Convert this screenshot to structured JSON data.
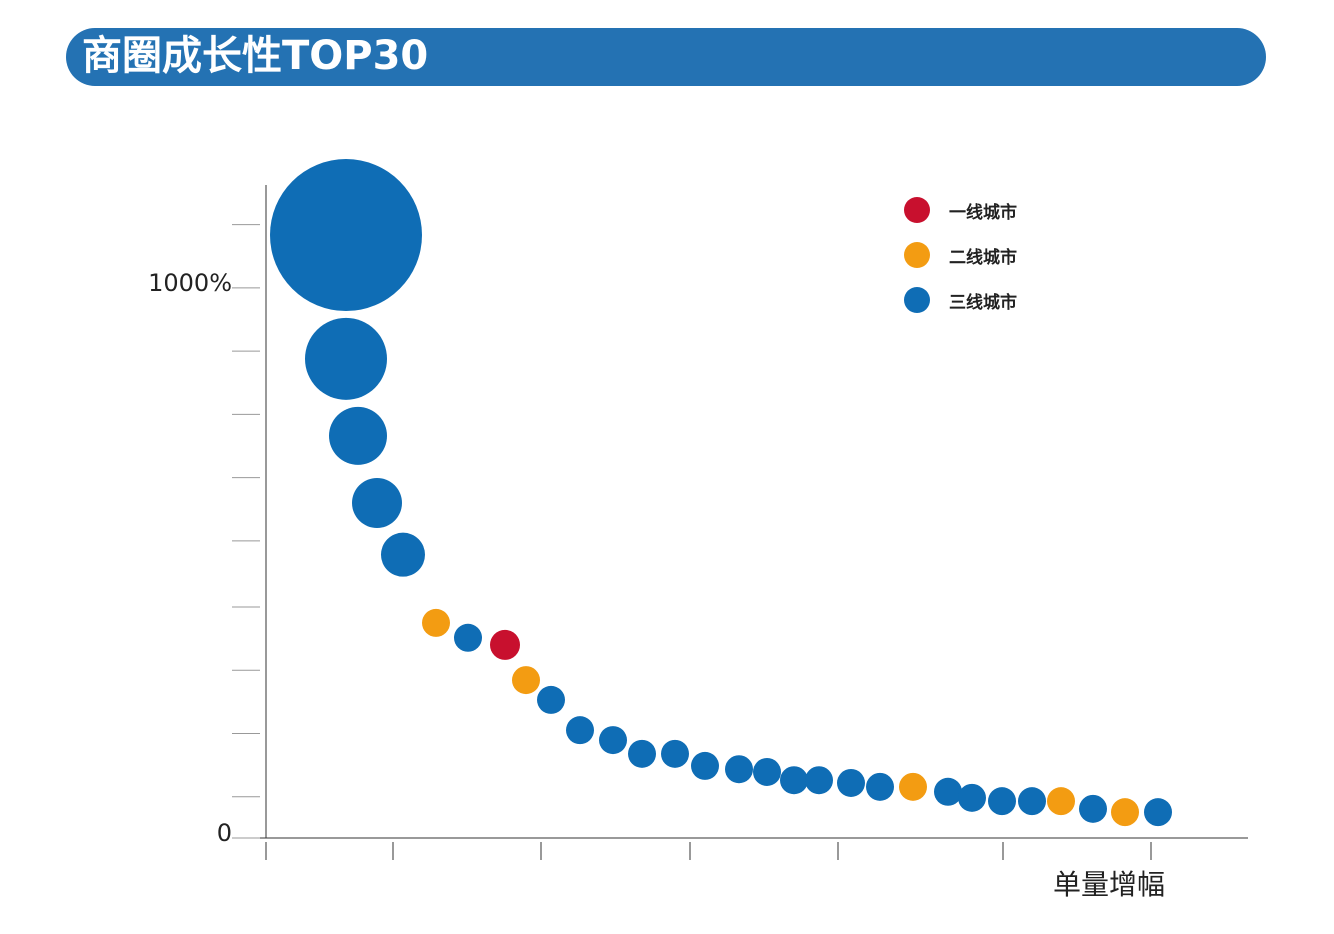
{
  "chart_data": {
    "type": "bubble",
    "title": "商圈成长性TOP30",
    "x_label": "单量增幅",
    "legend": "top-right",
    "xlim": [
      -2.6,
      98.2
    ],
    "xticks": [
      0,
      12.7,
      27.5,
      42.4,
      57.2,
      73.7,
      88.5
    ],
    "ylim": [
      0,
      1187
    ],
    "yticks": [
      0,
      {
        "value": 1000,
        "label": "1000%"
      }
    ],
    "yminorticks": [
      75,
      190,
      305,
      420,
      540,
      655,
      770,
      885,
      1115
    ],
    "series": [
      {
        "name": "一线城市",
        "color": "#c8102e",
        "x": [
          23.9
        ],
        "values": [
          351
        ],
        "sizes": [
          15
        ]
      },
      {
        "name": "二线城市",
        "color": "#f39c12",
        "x": [
          17.0,
          26.0,
          64.7,
          79.5,
          85.9
        ],
        "values": [
          391,
          287,
          93,
          67,
          47
        ],
        "sizes": [
          14,
          14,
          14,
          14,
          14
        ]
      },
      {
        "name": "三线城市",
        "color": "#0f6db5",
        "x": [
          8.0,
          8.0,
          9.2,
          11.1,
          13.7,
          20.2,
          28.5,
          31.4,
          34.7,
          37.6,
          40.9,
          43.9,
          47.3,
          50.1,
          52.8,
          55.3,
          58.5,
          61.4,
          68.2,
          70.6,
          73.6,
          76.6,
          82.7,
          89.2
        ],
        "values": [
          1096,
          871,
          731,
          609,
          515,
          364,
          251,
          196,
          178,
          153,
          153,
          131,
          125,
          120,
          105,
          105,
          100,
          93,
          84,
          73,
          67,
          67,
          53,
          47
        ],
        "sizes": [
          76,
          41,
          29,
          25,
          22,
          14,
          14,
          14,
          14,
          14,
          14,
          14,
          14,
          14,
          14,
          14,
          14,
          14,
          14,
          14,
          14,
          14,
          14,
          14
        ]
      }
    ]
  }
}
